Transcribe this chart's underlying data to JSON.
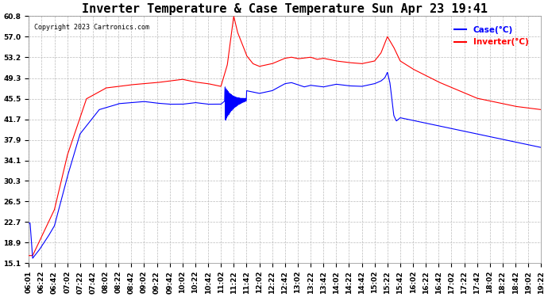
{
  "title": "Inverter Temperature & Case Temperature Sun Apr 23 19:41",
  "copyright": "Copyright 2023 Cartronics.com",
  "legend_case": "Case(°C)",
  "legend_inverter": "Inverter(°C)",
  "ylim": [
    15.1,
    60.8
  ],
  "yticks": [
    15.1,
    18.9,
    22.7,
    26.5,
    30.3,
    34.1,
    37.9,
    41.7,
    45.5,
    49.3,
    53.2,
    57.0,
    60.8
  ],
  "background_color": "#ffffff",
  "grid_color": "#bbbbbb",
  "case_color": "blue",
  "inverter_color": "red",
  "spike_color": "black",
  "title_fontsize": 11,
  "tick_fontsize": 6.5,
  "xtick_labels": [
    "06:01",
    "06:22",
    "06:42",
    "07:02",
    "07:22",
    "07:42",
    "08:02",
    "08:22",
    "08:42",
    "09:02",
    "09:22",
    "09:42",
    "10:02",
    "10:22",
    "10:42",
    "11:02",
    "11:22",
    "11:42",
    "12:02",
    "12:22",
    "12:42",
    "13:02",
    "13:22",
    "13:42",
    "14:02",
    "14:22",
    "14:42",
    "15:02",
    "15:22",
    "15:42",
    "16:02",
    "16:22",
    "16:42",
    "17:02",
    "17:22",
    "17:42",
    "18:02",
    "18:22",
    "18:42",
    "19:02",
    "19:22"
  ]
}
